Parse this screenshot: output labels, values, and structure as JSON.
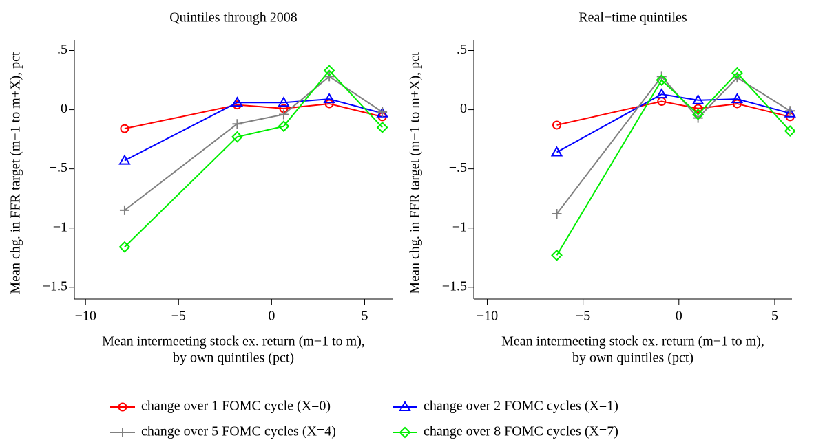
{
  "chart_data": [
    {
      "type": "line",
      "title": "Quintiles through 2008",
      "y_label": "Mean chg. in FFR target (m−1 to m+X), pct",
      "x_label": [
        "Mean intermeeting stock ex. return (m−1 to m),",
        "by own quintiles (pct)"
      ],
      "x": [
        -7.9,
        -1.85,
        0.65,
        3.1,
        5.95
      ],
      "xlim": [
        -10.6,
        6.5
      ],
      "ylim": [
        -1.6,
        0.59
      ],
      "xticks": [
        {
          "value": -10,
          "label": "−10"
        },
        {
          "value": -5,
          "label": "−5"
        },
        0,
        5
      ],
      "yticks": [
        {
          "value": 0.5,
          "label": ".5"
        },
        0,
        {
          "value": -0.5,
          "label": "−.5"
        },
        {
          "value": -1,
          "label": "−1"
        },
        {
          "value": -1.5,
          "label": "−1.5"
        }
      ],
      "series": [
        {
          "name": "change over 1 FOMC cycle (X=0)",
          "color": "#ff0000",
          "marker": "circle",
          "values": [
            -0.16,
            0.04,
            0.01,
            0.05,
            -0.06
          ]
        },
        {
          "name": "change over 2 FOMC cycles (X=1)",
          "color": "#0000ff",
          "marker": "triangle",
          "values": [
            -0.43,
            0.06,
            0.06,
            0.09,
            -0.03
          ]
        },
        {
          "name": "change over 5 FOMC cycles (X=4)",
          "color": "#808080",
          "marker": "plus",
          "values": [
            -0.85,
            -0.12,
            -0.04,
            0.28,
            -0.02
          ]
        },
        {
          "name": "change over 8 FOMC cycles (X=7)",
          "color": "#00ee00",
          "marker": "diamond",
          "values": [
            -1.16,
            -0.23,
            -0.14,
            0.33,
            -0.15
          ]
        }
      ]
    },
    {
      "type": "line",
      "title": "Real−time quintiles",
      "y_label": "Mean chg. in FFR target (m−1 to m+X), pct",
      "x_label": [
        "Mean intermeeting stock ex. return (m−1 to m),",
        "by own quintiles (pct)"
      ],
      "x": [
        -6.37,
        -0.9,
        1.0,
        3.04,
        5.8
      ],
      "xlim": [
        -10.7,
        5.9
      ],
      "ylim": [
        -1.6,
        0.59
      ],
      "xticks": [
        {
          "value": -10,
          "label": "−10"
        },
        {
          "value": -5,
          "label": "−5"
        },
        0,
        5
      ],
      "yticks": [
        {
          "value": 0.5,
          "label": ".5"
        },
        0,
        {
          "value": -0.5,
          "label": "−.5"
        },
        {
          "value": -1,
          "label": "−1"
        },
        {
          "value": -1.5,
          "label": "−1.5"
        }
      ],
      "series": [
        {
          "name": "change over 1 FOMC cycle (X=0)",
          "color": "#ff0000",
          "marker": "circle",
          "values": [
            -0.13,
            0.07,
            0.01,
            0.05,
            -0.06
          ]
        },
        {
          "name": "change over 2 FOMC cycles (X=1)",
          "color": "#0000ff",
          "marker": "triangle",
          "values": [
            -0.36,
            0.13,
            0.08,
            0.09,
            -0.03
          ]
        },
        {
          "name": "change over 5 FOMC cycles (X=4)",
          "color": "#808080",
          "marker": "plus",
          "values": [
            -0.88,
            0.28,
            -0.07,
            0.27,
            -0.01
          ]
        },
        {
          "name": "change over 8 FOMC cycles (X=7)",
          "color": "#00ee00",
          "marker": "diamond",
          "values": [
            -1.23,
            0.25,
            -0.04,
            0.31,
            -0.18
          ]
        }
      ]
    }
  ]
}
